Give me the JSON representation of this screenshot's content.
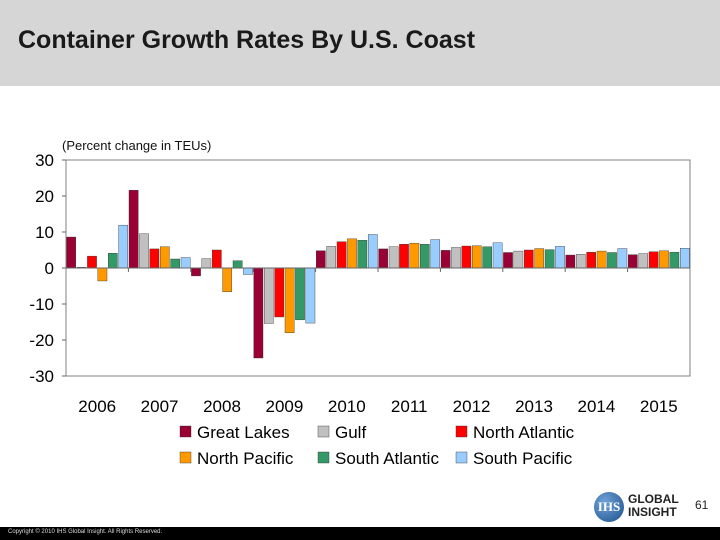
{
  "header": {
    "title": "Container Growth Rates By U.S. Coast"
  },
  "footer": {
    "copyright": "Copyright © 2010 IHS Global Insight. All Rights Reserved.",
    "page_number": "61"
  },
  "logo": {
    "mark": "IHS",
    "line1": "GLOBAL",
    "line2": "INSIGHT"
  },
  "colors": {
    "header_bg": "#d6d6d6",
    "series": [
      "#990033",
      "#c0c0c0",
      "#ff0000",
      "#ff9900",
      "#339966",
      "#99ccff"
    ]
  },
  "chart_data": {
    "type": "bar",
    "subtitle": "(Percent change in TEUs)",
    "categories": [
      "2006",
      "2007",
      "2008",
      "2009",
      "2010",
      "2011",
      "2012",
      "2013",
      "2014",
      "2015"
    ],
    "ylim": [
      -30,
      30
    ],
    "yticks": [
      30,
      20,
      10,
      0,
      -10,
      -20,
      -30
    ],
    "grid": false,
    "legend_position": "bottom",
    "series": [
      {
        "name": "Great Lakes",
        "values": [
          8.6,
          21.6,
          -2.2,
          -25.0,
          4.8,
          5.3,
          4.9,
          4.3,
          3.6,
          3.7
        ]
      },
      {
        "name": "Gulf",
        "values": [
          0.2,
          9.5,
          2.6,
          -15.4,
          6.0,
          5.9,
          5.7,
          4.7,
          3.8,
          4.0
        ]
      },
      {
        "name": "North Atlantic",
        "values": [
          3.3,
          5.3,
          5.0,
          -13.6,
          7.3,
          6.6,
          6.1,
          5.0,
          4.4,
          4.5
        ]
      },
      {
        "name": "North Pacific",
        "values": [
          -3.6,
          5.9,
          -6.6,
          -18.0,
          8.1,
          6.9,
          6.2,
          5.4,
          4.7,
          4.8
        ]
      },
      {
        "name": "South Atlantic",
        "values": [
          4.1,
          2.5,
          2.0,
          -14.4,
          7.7,
          6.6,
          5.9,
          5.1,
          4.3,
          4.4
        ]
      },
      {
        "name": "South Pacific",
        "values": [
          11.9,
          2.9,
          -1.8,
          -15.3,
          9.3,
          7.9,
          7.0,
          6.0,
          5.4,
          5.5
        ]
      }
    ]
  }
}
